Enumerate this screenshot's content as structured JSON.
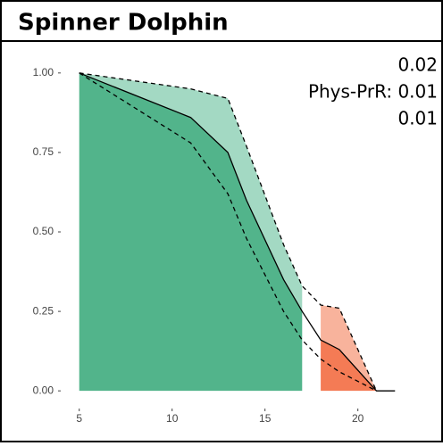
{
  "chart_data": {
    "type": "line",
    "title": "Spinner Dolphin",
    "annotations": [
      "0.02",
      "Phys-PrR: 0.01",
      "0.01"
    ],
    "x": [
      5,
      11,
      13,
      14,
      16,
      17,
      18,
      19,
      21,
      22
    ],
    "series": [
      {
        "name": "median",
        "color": "#000000",
        "dash": false,
        "values": [
          1.0,
          0.86,
          0.75,
          0.6,
          0.35,
          0.25,
          0.16,
          0.13,
          0.0,
          0.0
        ]
      },
      {
        "name": "upper",
        "color": "#000000",
        "dash": true,
        "values": [
          1.0,
          0.95,
          0.92,
          0.77,
          0.46,
          0.33,
          0.27,
          0.26,
          0.0,
          null
        ]
      },
      {
        "name": "lower",
        "color": "#000000",
        "dash": true,
        "values": [
          1.0,
          0.78,
          0.62,
          0.48,
          0.25,
          0.16,
          0.1,
          0.06,
          0.0,
          null
        ]
      }
    ],
    "regions": [
      {
        "from": 5,
        "to": 17,
        "color": "#52b48b",
        "light_color": "#a3d9c3"
      },
      {
        "from": 18,
        "to": 21,
        "color": "#f47b55",
        "light_color": "#f8b39c"
      }
    ],
    "xlim": [
      4.1,
      22.9
    ],
    "xticks": [
      5,
      10,
      15,
      20
    ],
    "ylim": [
      -0.05,
      1.05
    ],
    "yticks": [
      {
        "value": 0,
        "label": "0.00"
      },
      {
        "value": 0.25,
        "label": "0.25"
      },
      {
        "value": 0.5,
        "label": "0.50"
      },
      {
        "value": 0.75,
        "label": "0.75"
      },
      {
        "value": 1,
        "label": "1.00"
      }
    ]
  }
}
